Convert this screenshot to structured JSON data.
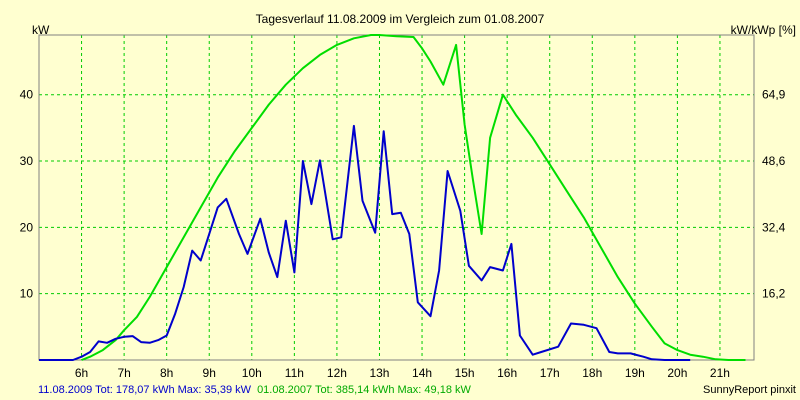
{
  "chart_data": {
    "type": "line",
    "title": "Tagesverlauf 11.08.2009 im Vergleich zum 01.08.2007",
    "ylabel_left": "kW",
    "ylabel_right": "kW/kWp [%]",
    "x_ticks": [
      "6h",
      "7h",
      "8h",
      "9h",
      "10h",
      "11h",
      "12h",
      "13h",
      "14h",
      "15h",
      "16h",
      "17h",
      "18h",
      "19h",
      "20h",
      "21h"
    ],
    "x_range_hours": [
      5.0,
      21.8
    ],
    "y_left_ticks": [
      "10",
      "20",
      "30",
      "40"
    ],
    "y_left_range": [
      0,
      49
    ],
    "y_right_ticks": [
      "16,2",
      "32,4",
      "48,6",
      "64,9"
    ],
    "grid": true,
    "legend": "bottom",
    "colors": {
      "series1": "#0000cc",
      "series2": "#00dd00",
      "grid": "#00cc00",
      "background": "#ffffd0"
    },
    "series": [
      {
        "name": "11.08.2009",
        "color": "#0000cc",
        "x": [
          5.0,
          5.5,
          5.8,
          6.0,
          6.2,
          6.4,
          6.6,
          6.8,
          7.0,
          7.2,
          7.4,
          7.6,
          7.8,
          8.0,
          8.2,
          8.4,
          8.6,
          8.8,
          8.9,
          9.2,
          9.4,
          9.7,
          9.9,
          10.2,
          10.4,
          10.6,
          10.8,
          11.0,
          11.2,
          11.4,
          11.6,
          11.9,
          12.1,
          12.4,
          12.6,
          12.9,
          13.1,
          13.3,
          13.5,
          13.7,
          13.9,
          14.2,
          14.4,
          14.6,
          14.9,
          15.1,
          15.4,
          15.6,
          15.9,
          16.1,
          16.3,
          16.6,
          16.8,
          17.2,
          17.5,
          17.8,
          18.1,
          18.4,
          18.6,
          18.9,
          19.2,
          19.4,
          19.7,
          20.0,
          20.3
        ],
        "y": [
          0,
          0,
          0,
          0.5,
          1.2,
          2.8,
          2.6,
          3.2,
          3.5,
          3.6,
          2.7,
          2.6,
          3.0,
          3.7,
          7.0,
          11.0,
          16.5,
          15.0,
          17.0,
          23.0,
          24.3,
          19.0,
          16.0,
          21.3,
          16.2,
          12.5,
          21.0,
          13.2,
          30.0,
          23.5,
          30.1,
          18.2,
          18.5,
          35.3,
          24.0,
          19.2,
          34.5,
          22.0,
          22.2,
          19.0,
          8.7,
          6.6,
          13.5,
          28.5,
          22.5,
          14.2,
          12.0,
          14.0,
          13.5,
          17.5,
          3.7,
          0.8,
          1.2,
          2.0,
          5.5,
          5.3,
          4.8,
          1.2,
          1.0,
          1.0,
          0.5,
          0.1,
          0,
          0,
          0
        ]
      },
      {
        "name": "01.08.2007",
        "color": "#00dd00",
        "x": [
          6.0,
          6.2,
          6.5,
          6.8,
          7.0,
          7.3,
          7.6,
          8.0,
          8.4,
          8.8,
          9.2,
          9.6,
          10.0,
          10.4,
          10.8,
          11.2,
          11.6,
          12.0,
          12.4,
          12.8,
          13.0,
          13.4,
          13.8,
          14.0,
          14.2,
          14.5,
          14.8,
          15.0,
          15.2,
          15.4,
          15.6,
          15.9,
          16.2,
          16.6,
          17.0,
          17.4,
          17.8,
          18.2,
          18.6,
          19.0,
          19.4,
          19.7,
          20.0,
          20.3,
          20.6,
          20.9,
          21.2,
          21.6
        ],
        "y": [
          0,
          0.5,
          1.5,
          3.0,
          4.5,
          6.5,
          9.5,
          14.0,
          18.5,
          23.0,
          27.5,
          31.5,
          35.0,
          38.5,
          41.5,
          44.0,
          46.0,
          47.5,
          48.5,
          49.0,
          49.0,
          48.8,
          48.7,
          47.0,
          45.0,
          41.5,
          47.5,
          35.5,
          27.0,
          19.0,
          33.5,
          40.0,
          37.0,
          33.5,
          29.5,
          25.5,
          21.5,
          17.0,
          12.5,
          8.5,
          5.0,
          2.5,
          1.5,
          0.8,
          0.5,
          0.1,
          0,
          0
        ]
      }
    ],
    "footer": {
      "series1_text": "11.08.2009 Tot: 178,07 kWh Max: 35,39 kW",
      "series2_text": "01.08.2007 Tot: 385,14 kWh Max: 49,18 kW",
      "brand": "SunnyReport pinxit"
    }
  }
}
